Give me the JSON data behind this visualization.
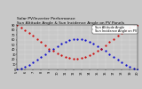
{
  "title1": "Solar PV/Inverter Performance",
  "title2": "Sun Altitude Angle & Sun Incidence Angle on PV Panels",
  "legend_blue": "Sun Altitude Angle",
  "legend_red": "Sun Incidence Angle on PV",
  "bg_color": "#c8c8c8",
  "plot_bg": "#c8c8c8",
  "grid_color": "#ffffff",
  "blue_color": "#0000cc",
  "red_color": "#cc0000",
  "title_color": "#000000",
  "time_hours": [
    5.0,
    5.5,
    6.0,
    6.5,
    7.0,
    7.5,
    8.0,
    8.5,
    9.0,
    9.5,
    10.0,
    10.5,
    11.0,
    11.5,
    12.0,
    12.5,
    13.0,
    13.5,
    14.0,
    14.5,
    15.0,
    15.5,
    16.0,
    16.5,
    17.0,
    17.5,
    18.0,
    18.5,
    19.0,
    19.5,
    20.0
  ],
  "altitude": [
    0,
    2,
    5,
    9,
    14,
    19,
    25,
    31,
    37,
    42,
    47,
    52,
    56,
    59,
    61,
    62,
    61,
    59,
    56,
    52,
    47,
    42,
    37,
    31,
    25,
    19,
    14,
    9,
    5,
    2,
    0
  ],
  "incidence": [
    90,
    85,
    80,
    74,
    68,
    62,
    55,
    48,
    42,
    37,
    32,
    28,
    25,
    23,
    22,
    22,
    23,
    25,
    28,
    32,
    37,
    42,
    48,
    55,
    62,
    68,
    74,
    80,
    85,
    90,
    90
  ],
  "xlim": [
    5,
    20
  ],
  "ylim": [
    0,
    90
  ],
  "xtick_positions": [
    5,
    6,
    7,
    8,
    9,
    10,
    11,
    12,
    13,
    14,
    15,
    16,
    17,
    18,
    19,
    20
  ],
  "xtick_labels": [
    "5",
    "6",
    "7",
    "8",
    "9",
    "10",
    "11",
    "12",
    "13",
    "14",
    "15",
    "16",
    "17",
    "18",
    "19",
    "20"
  ],
  "ytick_positions": [
    0,
    10,
    20,
    30,
    40,
    50,
    60,
    70,
    80,
    90
  ],
  "ytick_labels": [
    "0",
    "10",
    "20",
    "30",
    "40",
    "50",
    "60",
    "70",
    "80",
    "90"
  ],
  "marker_size": 1.2,
  "title_fontsize": 3.2,
  "tick_fontsize": 2.5,
  "legend_fontsize": 2.5
}
